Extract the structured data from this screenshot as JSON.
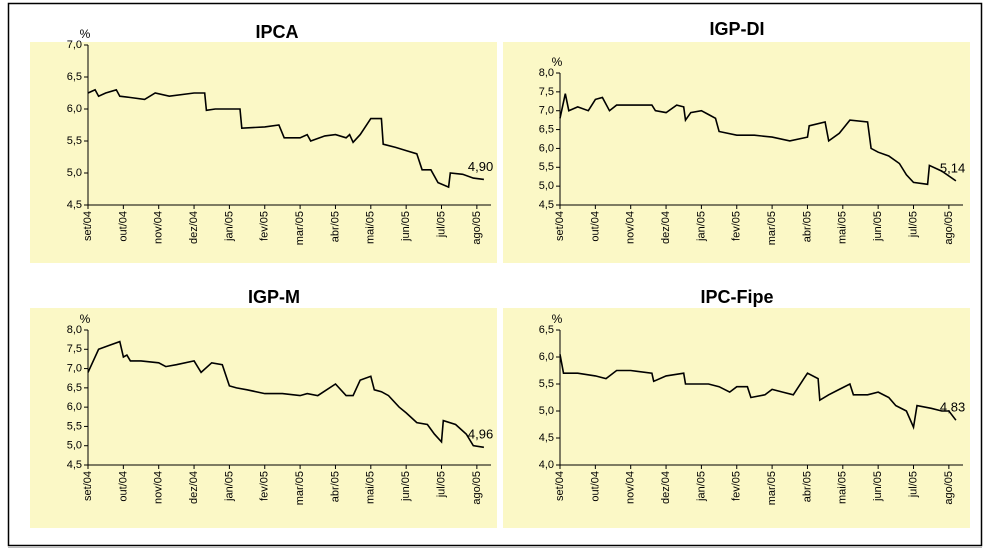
{
  "chart_data": [
    {
      "type": "line",
      "title": "IPCA",
      "y_label": "%",
      "color": "#000000",
      "x": [
        0,
        0.2,
        0.3,
        0.5,
        0.8,
        0.9,
        1.2,
        1.6,
        1.9,
        2.3,
        3.0,
        3.3,
        3.35,
        3.6,
        4.3,
        4.35,
        5.0,
        5.4,
        5.55,
        6.0,
        6.2,
        6.3,
        6.7,
        7.0,
        7.3,
        7.4,
        7.5,
        7.7,
        8.0,
        8.3,
        8.35,
        8.7,
        9.0,
        9.3,
        9.45,
        9.7,
        9.9,
        10.2,
        10.25,
        10.6,
        10.9,
        11.2
      ],
      "values": [
        6.25,
        6.3,
        6.2,
        6.25,
        6.3,
        6.2,
        6.18,
        6.15,
        6.25,
        6.2,
        6.25,
        6.25,
        5.98,
        6.0,
        6.0,
        5.7,
        5.72,
        5.75,
        5.55,
        5.55,
        5.6,
        5.5,
        5.58,
        5.6,
        5.55,
        5.6,
        5.48,
        5.6,
        5.85,
        5.85,
        5.45,
        5.4,
        5.35,
        5.3,
        5.05,
        5.05,
        4.85,
        4.78,
        5.0,
        4.98,
        4.92,
        4.9
      ],
      "value_labels": [
        null,
        null,
        null,
        null,
        null,
        null,
        null,
        null,
        null,
        null,
        null,
        null,
        null,
        null,
        null,
        null,
        null,
        null,
        null,
        null,
        null,
        null,
        null,
        null,
        null,
        null,
        null,
        null,
        null,
        null,
        null,
        null,
        null,
        null,
        null,
        null,
        null,
        null,
        null,
        null,
        null,
        "4,90"
      ],
      "xlim": [
        0,
        11.4
      ],
      "xticks": [
        {
          "value": 0,
          "label": "set/04"
        },
        {
          "value": 1,
          "label": "out/04"
        },
        {
          "value": 2,
          "label": "nov/04"
        },
        {
          "value": 3,
          "label": "dez/04"
        },
        {
          "value": 4,
          "label": "jan/05"
        },
        {
          "value": 5,
          "label": "fev/05"
        },
        {
          "value": 6,
          "label": "mar/05"
        },
        {
          "value": 7,
          "label": "abr/05"
        },
        {
          "value": 8,
          "label": "mai/05"
        },
        {
          "value": 9,
          "label": "jun/05"
        },
        {
          "value": 10,
          "label": "jul/05"
        },
        {
          "value": 11,
          "label": "ago/05"
        }
      ],
      "ylim": [
        4.5,
        7.0
      ],
      "yticks": [
        {
          "value": 4.5,
          "label": "4,5"
        },
        {
          "value": 5,
          "label": "5,0"
        },
        {
          "value": 5.5,
          "label": "5,5"
        },
        {
          "value": 6,
          "label": "6,0"
        },
        {
          "value": 6.5,
          "label": "6,5"
        },
        {
          "value": 7,
          "label": "7,0"
        }
      ]
    },
    {
      "type": "line",
      "title": "IGP-DI",
      "y_label": "%",
      "color": "#000000",
      "x": [
        0,
        0.15,
        0.25,
        0.5,
        0.8,
        1.0,
        1.2,
        1.4,
        1.6,
        2.0,
        2.6,
        2.7,
        3.0,
        3.3,
        3.5,
        3.55,
        3.7,
        4.0,
        4.2,
        4.4,
        4.5,
        5.0,
        5.5,
        6.0,
        6.5,
        7.0,
        7.05,
        7.5,
        7.6,
        7.9,
        8.2,
        8.7,
        8.8,
        9.0,
        9.3,
        9.6,
        9.8,
        10.0,
        10.4,
        10.45,
        10.8,
        11.2
      ],
      "values": [
        6.8,
        7.45,
        7.0,
        7.1,
        7.0,
        7.3,
        7.35,
        7.0,
        7.15,
        7.15,
        7.15,
        7.0,
        6.95,
        7.15,
        7.1,
        6.75,
        6.95,
        7.0,
        6.9,
        6.8,
        6.45,
        6.35,
        6.35,
        6.3,
        6.2,
        6.3,
        6.6,
        6.7,
        6.2,
        6.4,
        6.75,
        6.7,
        6.0,
        5.9,
        5.8,
        5.6,
        5.3,
        5.1,
        5.05,
        5.55,
        5.4,
        5.14
      ],
      "value_labels": [
        null,
        null,
        null,
        null,
        null,
        null,
        null,
        null,
        null,
        null,
        null,
        null,
        null,
        null,
        null,
        null,
        null,
        null,
        null,
        null,
        null,
        null,
        null,
        null,
        null,
        null,
        null,
        null,
        null,
        null,
        null,
        null,
        null,
        null,
        null,
        null,
        null,
        null,
        null,
        null,
        null,
        "5,14"
      ],
      "xlim": [
        0,
        11.4
      ],
      "xticks": [
        {
          "value": 0,
          "label": "set/04"
        },
        {
          "value": 1,
          "label": "out/04"
        },
        {
          "value": 2,
          "label": "nov/04"
        },
        {
          "value": 3,
          "label": "dez/04"
        },
        {
          "value": 4,
          "label": "jan/05"
        },
        {
          "value": 5,
          "label": "fev/05"
        },
        {
          "value": 6,
          "label": "mar/05"
        },
        {
          "value": 7,
          "label": "abr/05"
        },
        {
          "value": 8,
          "label": "mai/05"
        },
        {
          "value": 9,
          "label": "jun/05"
        },
        {
          "value": 10,
          "label": "jul/05"
        },
        {
          "value": 11,
          "label": "ago/05"
        }
      ],
      "ylim": [
        4.5,
        8.0
      ],
      "yticks": [
        {
          "value": 4.5,
          "label": "4,5"
        },
        {
          "value": 5,
          "label": "5,0"
        },
        {
          "value": 5.5,
          "label": "5,5"
        },
        {
          "value": 6,
          "label": "6,0"
        },
        {
          "value": 6.5,
          "label": "6,5"
        },
        {
          "value": 7,
          "label": "7,0"
        },
        {
          "value": 7.5,
          "label": "7,5"
        },
        {
          "value": 8,
          "label": "8,0"
        }
      ]
    },
    {
      "type": "line",
      "title": "IGP-M",
      "y_label": "%",
      "color": "#000000",
      "x": [
        0,
        0.3,
        0.6,
        0.9,
        1.0,
        1.1,
        1.2,
        1.5,
        2.0,
        2.2,
        2.5,
        3.0,
        3.2,
        3.5,
        3.8,
        4.0,
        4.2,
        4.5,
        5.0,
        5.5,
        6.0,
        6.2,
        6.5,
        7.0,
        7.3,
        7.5,
        7.7,
        8.0,
        8.1,
        8.3,
        8.5,
        8.8,
        9.0,
        9.3,
        9.6,
        9.8,
        10.0,
        10.05,
        10.4,
        10.7,
        10.9,
        11.2
      ],
      "values": [
        6.9,
        7.5,
        7.6,
        7.7,
        7.3,
        7.35,
        7.2,
        7.2,
        7.15,
        7.05,
        7.1,
        7.2,
        6.9,
        7.15,
        7.1,
        6.55,
        6.5,
        6.45,
        6.35,
        6.35,
        6.3,
        6.35,
        6.3,
        6.6,
        6.3,
        6.3,
        6.7,
        6.8,
        6.45,
        6.4,
        6.3,
        6.0,
        5.85,
        5.6,
        5.55,
        5.3,
        5.1,
        5.65,
        5.55,
        5.3,
        5.0,
        4.96
      ],
      "value_labels": [
        null,
        null,
        null,
        null,
        null,
        null,
        null,
        null,
        null,
        null,
        null,
        null,
        null,
        null,
        null,
        null,
        null,
        null,
        null,
        null,
        null,
        null,
        null,
        null,
        null,
        null,
        null,
        null,
        null,
        null,
        null,
        null,
        null,
        null,
        null,
        null,
        null,
        null,
        null,
        null,
        null,
        "4,96"
      ],
      "xlim": [
        0,
        11.4
      ],
      "xticks": [
        {
          "value": 0,
          "label": "set/04"
        },
        {
          "value": 1,
          "label": "out/04"
        },
        {
          "value": 2,
          "label": "nov/04"
        },
        {
          "value": 3,
          "label": "dez/04"
        },
        {
          "value": 4,
          "label": "jan/05"
        },
        {
          "value": 5,
          "label": "fev/05"
        },
        {
          "value": 6,
          "label": "mar/05"
        },
        {
          "value": 7,
          "label": "abr/05"
        },
        {
          "value": 8,
          "label": "mai/05"
        },
        {
          "value": 9,
          "label": "jun/05"
        },
        {
          "value": 10,
          "label": "jul/05"
        },
        {
          "value": 11,
          "label": "ago/05"
        }
      ],
      "ylim": [
        4.5,
        8.0
      ],
      "yticks": [
        {
          "value": 4.5,
          "label": "4,5"
        },
        {
          "value": 5,
          "label": "5,0"
        },
        {
          "value": 5.5,
          "label": "5,5"
        },
        {
          "value": 6,
          "label": "6,0"
        },
        {
          "value": 6.5,
          "label": "6,5"
        },
        {
          "value": 7,
          "label": "7,0"
        },
        {
          "value": 7.5,
          "label": "7,5"
        },
        {
          "value": 8,
          "label": "8,0"
        }
      ]
    },
    {
      "type": "line",
      "title": "IPC-Fipe",
      "y_label": "%",
      "color": "#000000",
      "x": [
        0,
        0.1,
        0.5,
        1.0,
        1.3,
        1.6,
        2.0,
        2.6,
        2.65,
        3.0,
        3.5,
        3.55,
        4.0,
        4.2,
        4.5,
        4.8,
        5.0,
        5.3,
        5.4,
        5.8,
        6.0,
        6.3,
        6.6,
        6.9,
        7.0,
        7.3,
        7.35,
        7.6,
        7.9,
        8.2,
        8.3,
        8.7,
        9.0,
        9.3,
        9.5,
        9.8,
        10.0,
        10.1,
        10.5,
        10.8,
        11.0,
        11.2
      ],
      "values": [
        6.05,
        5.7,
        5.7,
        5.65,
        5.6,
        5.75,
        5.75,
        5.7,
        5.55,
        5.65,
        5.7,
        5.5,
        5.5,
        5.5,
        5.45,
        5.35,
        5.45,
        5.45,
        5.25,
        5.3,
        5.4,
        5.35,
        5.3,
        5.6,
        5.7,
        5.6,
        5.2,
        5.3,
        5.4,
        5.5,
        5.3,
        5.3,
        5.35,
        5.25,
        5.1,
        5.0,
        4.7,
        5.1,
        5.05,
        5.0,
        5.0,
        4.83
      ],
      "value_labels": [
        null,
        null,
        null,
        null,
        null,
        null,
        null,
        null,
        null,
        null,
        null,
        null,
        null,
        null,
        null,
        null,
        null,
        null,
        null,
        null,
        null,
        null,
        null,
        null,
        null,
        null,
        null,
        null,
        null,
        null,
        null,
        null,
        null,
        null,
        null,
        null,
        null,
        null,
        null,
        null,
        null,
        "4,83"
      ],
      "xlim": [
        0,
        11.4
      ],
      "xticks": [
        {
          "value": 0,
          "label": "set/04"
        },
        {
          "value": 1,
          "label": "out/04"
        },
        {
          "value": 2,
          "label": "nov/04"
        },
        {
          "value": 3,
          "label": "dez/04"
        },
        {
          "value": 4,
          "label": "jan/05"
        },
        {
          "value": 5,
          "label": "fev/05"
        },
        {
          "value": 6,
          "label": "mar/05"
        },
        {
          "value": 7,
          "label": "abr/05"
        },
        {
          "value": 8,
          "label": "mai/05"
        },
        {
          "value": 9,
          "label": "jun/05"
        },
        {
          "value": 10,
          "label": "jul/05"
        },
        {
          "value": 11,
          "label": "ago/05"
        }
      ],
      "ylim": [
        4.0,
        6.5
      ],
      "yticks": [
        {
          "value": 4,
          "label": "4,0"
        },
        {
          "value": 4.5,
          "label": "4,5"
        },
        {
          "value": 5,
          "label": "5,0"
        },
        {
          "value": 5.5,
          "label": "5,5"
        },
        {
          "value": 6,
          "label": "6,0"
        },
        {
          "value": 6.5,
          "label": "6,5"
        }
      ]
    }
  ]
}
